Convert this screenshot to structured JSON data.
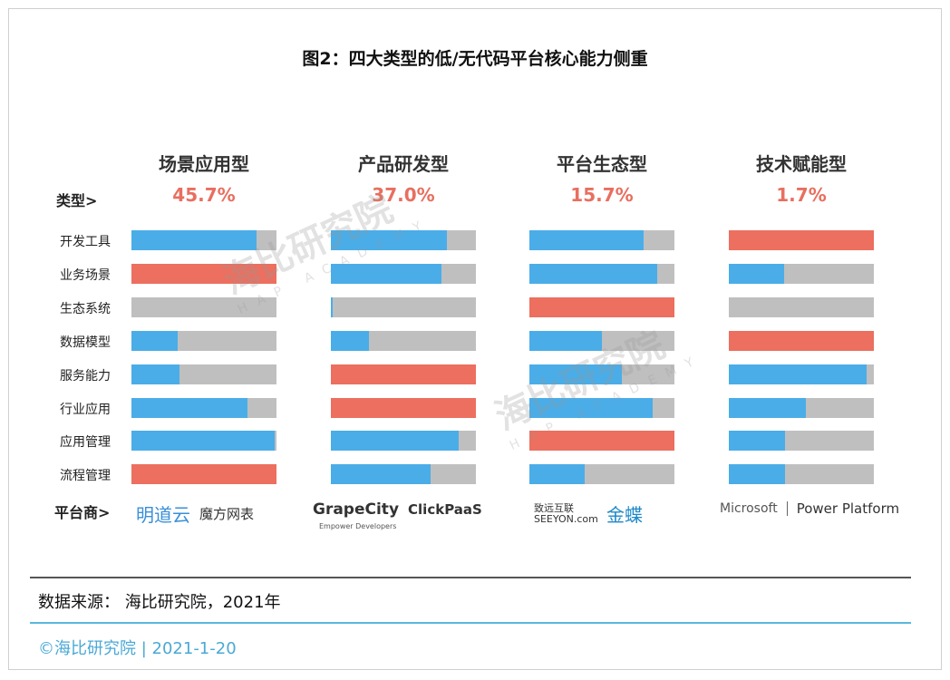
{
  "chart_data": {
    "type": "bar",
    "title": "图2：四大类型的低/无代码平台核心能力侧重",
    "type_label": "类型>",
    "provider_label": "平台商>",
    "rows": [
      "开发工具",
      "业务场景",
      "生态系统",
      "数据模型",
      "服务能力",
      "行业应用",
      "应用管理",
      "流程管理"
    ],
    "columns": [
      {
        "name": "场景应用型",
        "share": "45.7%",
        "values": [
          0.86,
          1,
          0,
          0.32,
          0.33,
          0.8,
          0.99,
          1
        ],
        "providers": [
          "明道云",
          "魔方网表"
        ]
      },
      {
        "name": "产品研发型",
        "share": "37.0%",
        "values": [
          0.8,
          0.76,
          0.01,
          0.26,
          1,
          1,
          0.88,
          0.69
        ],
        "providers": [
          "GrapeCity",
          "ClickPaaS"
        ]
      },
      {
        "name": "平台生态型",
        "share": "15.7%",
        "values": [
          0.79,
          0.88,
          1,
          0.5,
          0.64,
          0.85,
          1,
          0.38
        ],
        "providers": [
          "致远互联 SEEYON.com",
          "金蝶"
        ]
      },
      {
        "name": "技术赋能型",
        "share": "1.7%",
        "values": [
          1,
          0.38,
          0,
          1,
          0.95,
          0.53,
          0.39,
          0.39
        ],
        "providers": [
          "Microsoft",
          "Power Platform"
        ]
      }
    ],
    "xlim": [
      0,
      1
    ],
    "colors": {
      "fill": "#4aade8",
      "full": "#ec6f5f",
      "remainder": "#bfbfbf"
    }
  },
  "grapecity_tagline": "Empower Developers",
  "source": "数据来源： 海比研究院，2021年",
  "footer": "©海比研究院 | 2021-1-20",
  "watermark": {
    "cn": "海比研究院",
    "en": "HAP ACADEMY"
  }
}
